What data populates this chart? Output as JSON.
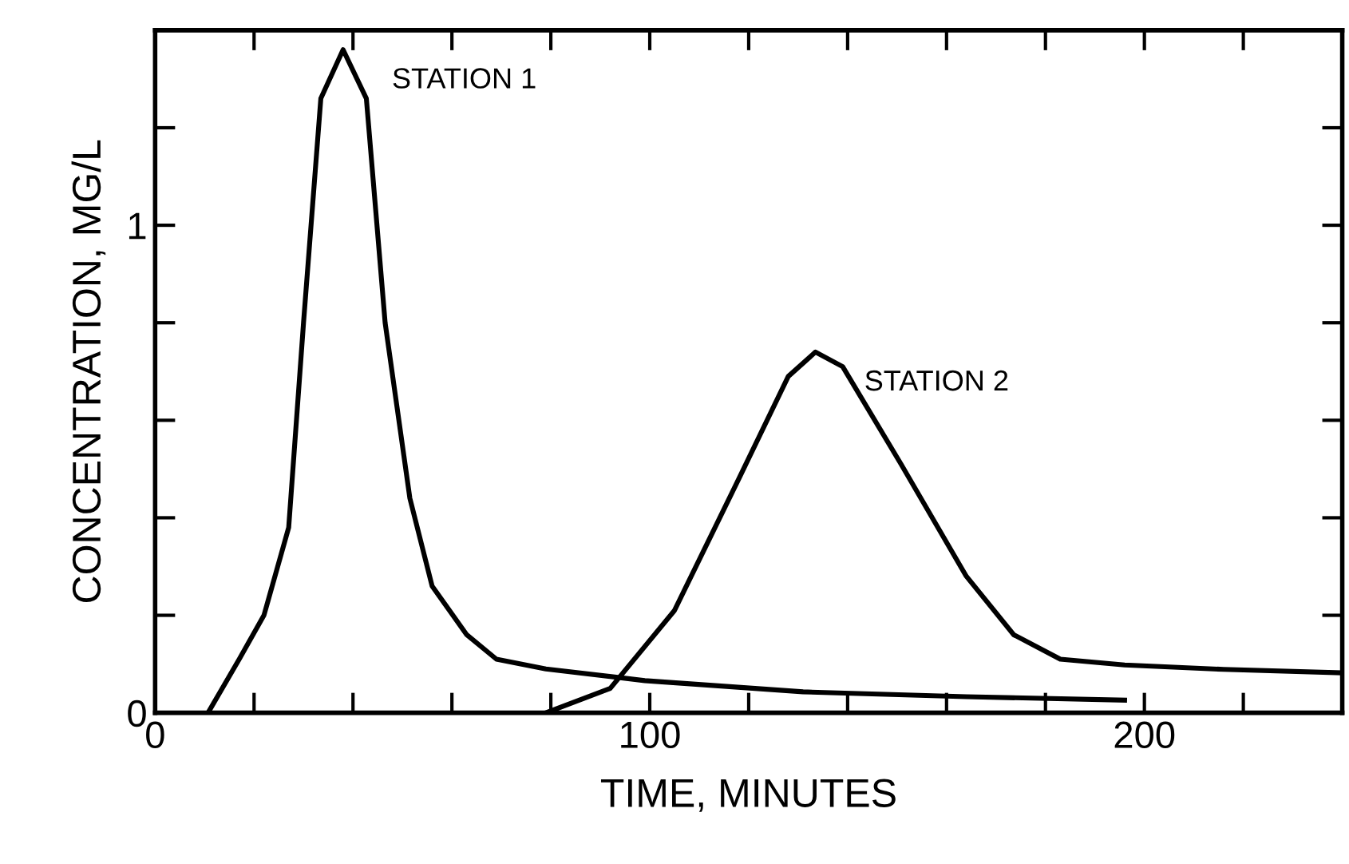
{
  "chart_data": {
    "type": "line",
    "xlabel": "TIME, MINUTES",
    "ylabel": "CONCENTRATION, MG/L",
    "xlim": [
      0,
      240
    ],
    "ylim": [
      0,
      1.4
    ],
    "xticks": [
      0,
      {
        "value": 20,
        "label": null
      },
      {
        "value": 40,
        "label": null
      },
      {
        "value": 60,
        "label": null
      },
      {
        "value": 80,
        "label": null
      },
      100,
      {
        "value": 120,
        "label": null
      },
      {
        "value": 140,
        "label": null
      },
      {
        "value": 160,
        "label": null
      },
      {
        "value": 180,
        "label": null
      },
      200,
      {
        "value": 220,
        "label": null
      }
    ],
    "yticks": [
      0,
      {
        "value": 0.2,
        "label": null
      },
      {
        "value": 0.4,
        "label": null
      },
      {
        "value": 0.6,
        "label": null
      },
      {
        "value": 0.8,
        "label": null
      },
      1,
      {
        "value": 1.2,
        "label": null
      }
    ],
    "grid": false,
    "marker": "none",
    "line_style": "solid",
    "series": [
      {
        "name": "STATION 1",
        "color": "#000000",
        "x": [
          10.7,
          17,
          22,
          27,
          30,
          33.5,
          38,
          42.7,
          46.5,
          51.5,
          56,
          63,
          69,
          79,
          99,
          131,
          164,
          196
        ],
        "values": [
          0,
          0.11,
          0.2,
          0.38,
          0.8,
          1.26,
          1.36,
          1.26,
          0.8,
          0.44,
          0.26,
          0.16,
          0.11,
          0.09,
          0.066,
          0.043,
          0.033,
          0.026
        ]
      },
      {
        "name": "STATION 2",
        "color": "#000000",
        "x": [
          79,
          92,
          105,
          118,
          128,
          133.5,
          139,
          150.8,
          164,
          173.6,
          183,
          196,
          216,
          240
        ],
        "values": [
          0,
          0.05,
          0.21,
          0.48,
          0.69,
          0.74,
          0.71,
          0.51,
          0.28,
          0.16,
          0.11,
          0.098,
          0.089,
          0.082
        ]
      }
    ]
  }
}
